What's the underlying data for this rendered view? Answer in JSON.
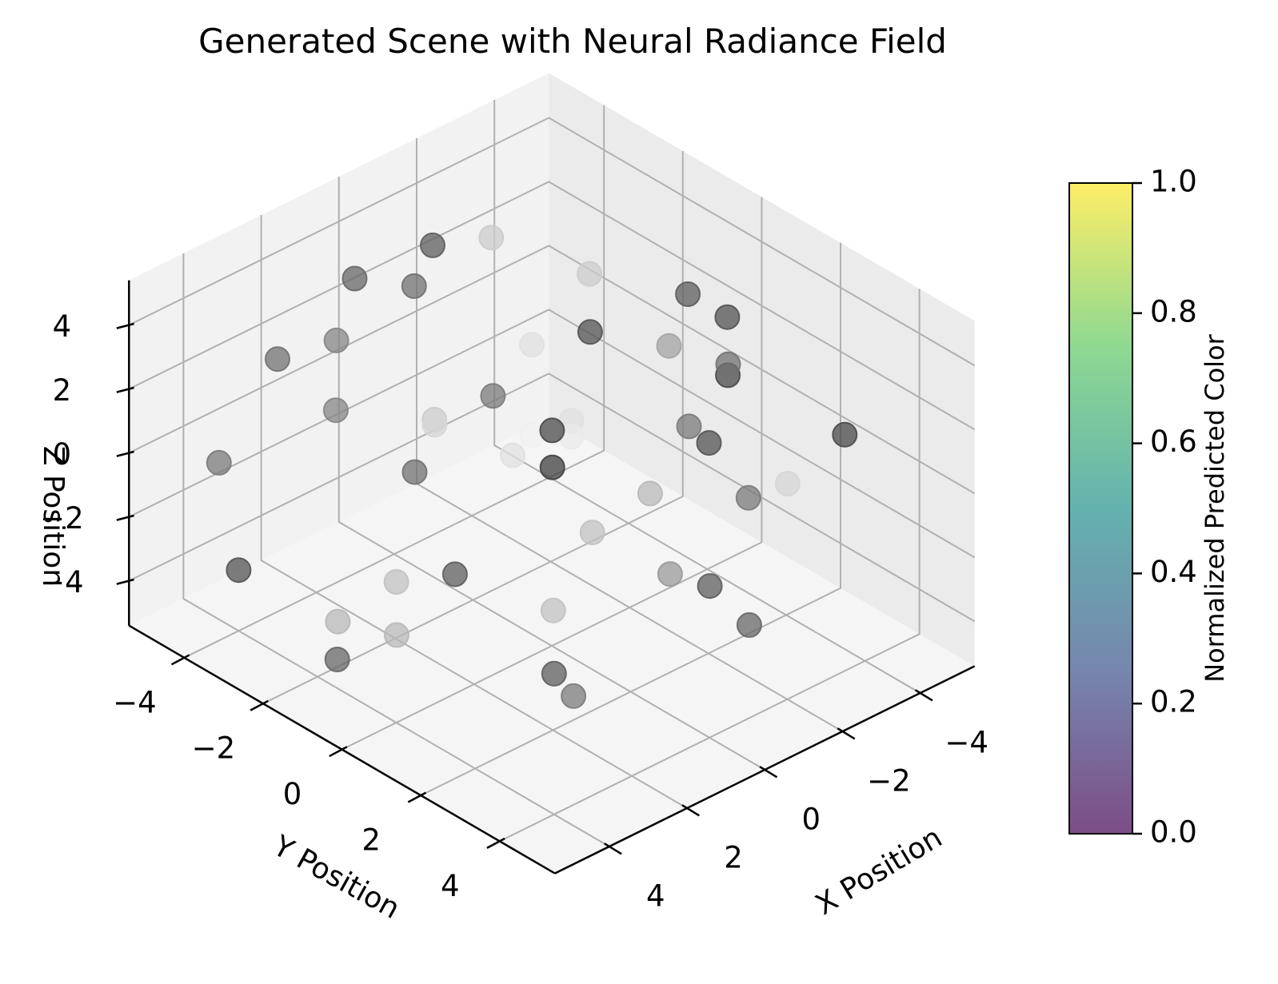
{
  "chart_data": {
    "type": "scatter3d",
    "title": "Generated Scene with Neural Radiance Field",
    "xlabel": "X Position",
    "ylabel": "Y Position",
    "zlabel": "Z Position",
    "xlim": [
      -5,
      5
    ],
    "ylim": [
      -5,
      5
    ],
    "zlim": [
      -5,
      5
    ],
    "x_ticks": [
      -4,
      -2,
      0,
      2,
      4
    ],
    "y_ticks": [
      -4,
      -2,
      0,
      2,
      4
    ],
    "z_ticks": [
      -4,
      -2,
      0,
      2,
      4
    ],
    "tick_labels": {
      "x": [
        "−4",
        "−2",
        "0",
        "2",
        "4"
      ],
      "y": [
        "−4",
        "−2",
        "0",
        "2",
        "4"
      ],
      "z": [
        "−4",
        "−2",
        "0",
        "2",
        "4"
      ]
    },
    "grid": true,
    "colorbar": {
      "label": "Normalized Predicted Color",
      "range": [
        0.0,
        1.0
      ],
      "ticks": [
        "0.0",
        "0.2",
        "0.4",
        "0.6",
        "0.8",
        "1.0"
      ],
      "colormap": [
        "#440154",
        "#3b528b",
        "#21918c",
        "#5ec962",
        "#fde725"
      ],
      "alpha": 0.7
    },
    "point_color_range": [
      "#2b2b2b",
      "#f4f4f4"
    ],
    "points": [
      {
        "x": 0.5,
        "y": -3.0,
        "z": 4.0,
        "c": 0.35
      },
      {
        "x": 4.0,
        "y": -4.0,
        "z": -3.5,
        "c": 0.2
      },
      {
        "x": 3.0,
        "y": -4.0,
        "z": 2.5,
        "c": 0.35
      },
      {
        "x": 2.5,
        "y": -3.0,
        "z": 3.5,
        "c": 0.45
      },
      {
        "x": 4.0,
        "y": -1.5,
        "z": -4.5,
        "c": 0.3
      },
      {
        "x": -1.5,
        "y": -4.5,
        "z": 3.0,
        "c": 0.25
      },
      {
        "x": -3.5,
        "y": 0.0,
        "z": 3.5,
        "c": 0.25
      },
      {
        "x": -2.5,
        "y": -4.0,
        "z": 3.0,
        "c": 0.8
      },
      {
        "x": 0.5,
        "y": 0.5,
        "z": 2.0,
        "c": 0.15
      },
      {
        "x": -2.0,
        "y": -1.0,
        "z": 2.5,
        "c": 0.2
      },
      {
        "x": -3.0,
        "y": -2.0,
        "z": 3.0,
        "c": 0.8
      },
      {
        "x": -3.5,
        "y": 1.0,
        "z": 3.5,
        "c": 0.2
      },
      {
        "x": -2.0,
        "y": 2.5,
        "z": 4.0,
        "c": 0.35
      },
      {
        "x": -2.5,
        "y": 2.0,
        "z": 3.0,
        "c": 0.15
      },
      {
        "x": -1.5,
        "y": 2.0,
        "z": 2.0,
        "c": 0.4
      },
      {
        "x": 4.0,
        "y": -4.5,
        "z": -0.5,
        "c": 0.4
      },
      {
        "x": -1.0,
        "y": 3.0,
        "z": 2.5,
        "c": 0.2
      },
      {
        "x": -1.0,
        "y": 4.0,
        "z": 1.5,
        "c": 0.4
      },
      {
        "x": 0.5,
        "y": 4.5,
        "z": 0.0,
        "c": 0.25
      },
      {
        "x": -5.0,
        "y": 2.5,
        "z": 0.0,
        "c": 0.15
      },
      {
        "x": 1.5,
        "y": -4.0,
        "z": 0.0,
        "c": 0.45
      },
      {
        "x": 2.0,
        "y": -1.0,
        "z": 2.0,
        "c": 0.85
      },
      {
        "x": 1.5,
        "y": -1.5,
        "z": 1.5,
        "c": 0.8
      },
      {
        "x": -0.5,
        "y": -1.0,
        "z": 3.0,
        "c": 0.9
      },
      {
        "x": 0.5,
        "y": -1.0,
        "z": 2.0,
        "c": 0.4
      },
      {
        "x": 0.5,
        "y": -0.5,
        "z": 0.5,
        "c": 0.9
      },
      {
        "x": 1.5,
        "y": -2.0,
        "z": -0.5,
        "c": 0.35
      },
      {
        "x": 0.5,
        "y": 0.0,
        "z": 1.5,
        "c": 0.98
      },
      {
        "x": 0.0,
        "y": 0.5,
        "z": 1.5,
        "c": 0.95
      },
      {
        "x": 1.0,
        "y": 1.0,
        "z": 1.5,
        "c": 0.1
      },
      {
        "x": 0.0,
        "y": 0.5,
        "z": 2.0,
        "c": 0.9
      },
      {
        "x": -2.0,
        "y": 1.0,
        "z": 3.5,
        "c": 0.6
      },
      {
        "x": 2.5,
        "y": 2.5,
        "z": -1.0,
        "c": 0.75
      },
      {
        "x": 4.0,
        "y": 0.0,
        "z": -1.0,
        "c": 0.75
      },
      {
        "x": 3.0,
        "y": 0.5,
        "z": -1.0,
        "c": 0.25
      },
      {
        "x": 0.0,
        "y": 3.0,
        "z": -1.0,
        "c": 0.55
      },
      {
        "x": -0.5,
        "y": 2.0,
        "z": 0.5,
        "c": 0.7
      },
      {
        "x": 2.0,
        "y": 3.0,
        "z": 1.5,
        "c": 0.75
      },
      {
        "x": 5.0,
        "y": -0.5,
        "z": -2.0,
        "c": 0.7
      },
      {
        "x": 4.5,
        "y": 0.5,
        "z": -2.0,
        "c": 0.7
      },
      {
        "x": -1.5,
        "y": 4.5,
        "z": 2.0,
        "c": 0.85
      },
      {
        "x": 0.5,
        "y": 5.5,
        "z": -0.5,
        "c": 0.3
      },
      {
        "x": 4.0,
        "y": 4.0,
        "z": -1.0,
        "c": 0.25
      },
      {
        "x": 3.5,
        "y": 4.0,
        "z": -2.0,
        "c": 0.4
      },
      {
        "x": 0.0,
        "y": -5.0,
        "z": 2.5,
        "c": 0.3
      }
    ]
  }
}
